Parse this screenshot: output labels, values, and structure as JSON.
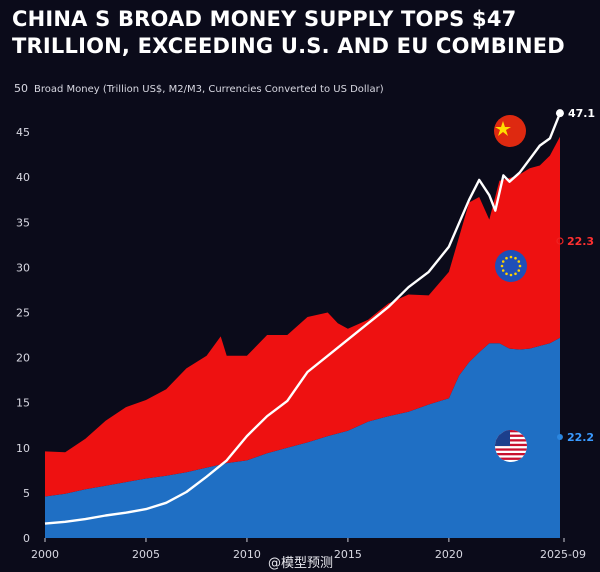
{
  "title": "CHINA S BROAD MONEY SUPPLY TOPS $47 TRILLION, EXCEEDING U.S. AND EU COMBINED",
  "watermark": "@模型预测",
  "chart_data": {
    "type": "area",
    "title": "CHINA S BROAD MONEY SUPPLY TOPS $47 TRILLION, EXCEEDING U.S. AND EU COMBINED",
    "ylabel": "Broad Money (Trillion US$, M2/M3, Currencies Converted to US Dollar)",
    "xlabel": "",
    "xlim": [
      2000,
      2025.75
    ],
    "ylim": [
      0,
      50
    ],
    "grid": false,
    "x_ticks": [
      "2000",
      "2005",
      "2010",
      "2015",
      "2020",
      "2025-09"
    ],
    "y_ticks": [
      "0",
      "5",
      "10",
      "15",
      "20",
      "25",
      "30",
      "35",
      "40",
      "45",
      "50"
    ],
    "stacking": "stacked areas (US bottom, EU on top); China shown as line",
    "series": [
      {
        "name": "U.S.",
        "kind": "area",
        "color": "#1f6fc4",
        "end_label": "22.2",
        "x": [
          2000,
          2001,
          2002,
          2003,
          2004,
          2005,
          2006,
          2007,
          2008,
          2009,
          2010,
          2011,
          2012,
          2013,
          2014,
          2015,
          2016,
          2017,
          2018,
          2019,
          2020,
          2020.5,
          2021,
          2021.5,
          2022,
          2022.5,
          2023,
          2023.5,
          2024,
          2024.5,
          2025,
          2025.5
        ],
        "values": [
          4.6,
          4.9,
          5.4,
          5.8,
          6.2,
          6.6,
          6.9,
          7.3,
          7.8,
          8.3,
          8.6,
          9.4,
          10.0,
          10.6,
          11.3,
          11.9,
          12.9,
          13.5,
          14.0,
          14.8,
          15.5,
          18.0,
          19.5,
          20.6,
          21.6,
          21.6,
          21.0,
          20.9,
          21.0,
          21.3,
          21.6,
          22.2
        ]
      },
      {
        "name": "EU",
        "kind": "area",
        "color": "#ee1111",
        "end_label": "22.3",
        "x": [
          2000,
          2001,
          2002,
          2003,
          2004,
          2005,
          2006,
          2007,
          2008,
          2008.7,
          2009,
          2010,
          2011,
          2012,
          2013,
          2014,
          2014.5,
          2015,
          2016,
          2017,
          2018,
          2019,
          2020,
          2021,
          2021.5,
          2022,
          2022.5,
          2023,
          2023.5,
          2024,
          2024.5,
          2025,
          2025.5
        ],
        "values": [
          5.0,
          4.6,
          5.6,
          7.2,
          8.3,
          8.7,
          9.6,
          11.5,
          12.4,
          14.2,
          11.9,
          11.6,
          13.1,
          12.5,
          13.9,
          13.7,
          12.2,
          11.3,
          11.3,
          12.5,
          13.0,
          12.1,
          14.0,
          17.7,
          17.2,
          13.7,
          18.0,
          18.9,
          19.4,
          20.0,
          20.0,
          20.8,
          22.3
        ]
      },
      {
        "name": "China",
        "kind": "line",
        "color": "#ffffff",
        "end_label": "47.1",
        "x": [
          2000,
          2001,
          2002,
          2003,
          2004,
          2005,
          2006,
          2007,
          2008,
          2009,
          2010,
          2011,
          2012,
          2013,
          2014,
          2015,
          2016,
          2017,
          2018,
          2019,
          2020,
          2021,
          2021.5,
          2022,
          2022.3,
          2022.7,
          2023,
          2023.5,
          2024,
          2024.5,
          2025,
          2025.5
        ],
        "values": [
          1.6,
          1.8,
          2.1,
          2.5,
          2.8,
          3.2,
          3.9,
          5.1,
          6.8,
          8.6,
          11.3,
          13.5,
          15.2,
          18.4,
          20.2,
          22.0,
          23.8,
          25.6,
          27.8,
          29.5,
          32.3,
          37.5,
          39.7,
          38.0,
          36.3,
          40.2,
          39.5,
          40.5,
          42.0,
          43.5,
          44.3,
          47.1
        ]
      }
    ]
  },
  "flags": [
    {
      "name": "China",
      "icon": "china-flag-icon"
    },
    {
      "name": "EU",
      "icon": "eu-flag-icon"
    },
    {
      "name": "U.S.",
      "icon": "us-flag-icon"
    }
  ]
}
